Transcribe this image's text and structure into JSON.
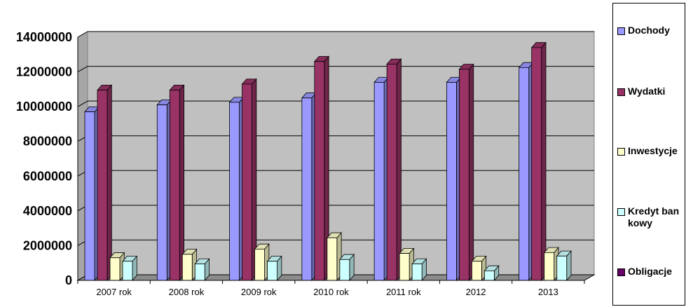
{
  "chart_data": {
    "type": "bar",
    "categories": [
      "2007 rok",
      "2008 rok",
      "2009 rok",
      "2010 rok",
      "2011 rok",
      "2012",
      "2013"
    ],
    "series": [
      {
        "name": "Dochody",
        "color": "#9999ff",
        "values": [
          9700000,
          10100000,
          10250000,
          10500000,
          11400000,
          11400000,
          12250000
        ]
      },
      {
        "name": "Wydatki",
        "color": "#993366",
        "values": [
          10950000,
          10950000,
          11300000,
          12600000,
          12450000,
          12150000,
          13400000
        ]
      },
      {
        "name": "Inwestycje",
        "color": "#ffffcc",
        "values": [
          1300000,
          1500000,
          1800000,
          2450000,
          1550000,
          1100000,
          1600000
        ]
      },
      {
        "name": "Kredyt bankowy",
        "color": "#ccffff",
        "values": [
          1100000,
          950000,
          1100000,
          1200000,
          950000,
          550000,
          1400000
        ]
      },
      {
        "name": "Obligacje",
        "color": "#660066",
        "values": [
          0,
          0,
          0,
          0,
          0,
          0,
          0
        ]
      }
    ],
    "yticks": [
      "0",
      "2000000",
      "4000000",
      "6000000",
      "8000000",
      "10000000",
      "12000000",
      "14000000"
    ],
    "ylim": [
      0,
      14000000
    ],
    "grid": true,
    "legend_position": "right",
    "title": "",
    "xlabel": "",
    "ylabel": ""
  },
  "legend": {
    "items": [
      {
        "label": "Dochody",
        "color": "#9999ff"
      },
      {
        "label": "Wydatki",
        "color": "#993366"
      },
      {
        "label": "Inwestycje",
        "color": "#ffffcc"
      },
      {
        "label": "Kredyt bankowy",
        "color": "#ccffff"
      },
      {
        "label": "Obligacje",
        "color": "#660066"
      }
    ]
  }
}
